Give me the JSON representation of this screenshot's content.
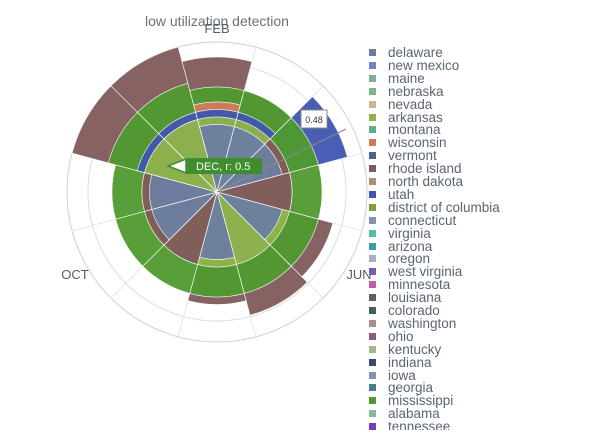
{
  "chart_data": {
    "type": "barpolar",
    "title": "low utilization detection",
    "angular_categories": [
      "FEB",
      "JUN",
      "OCT"
    ],
    "radial_ticks": [
      "0.48"
    ],
    "annotations": [
      "DEC, r: 0.5"
    ],
    "series": [
      {
        "name": "delaware",
        "color": "#6b7ea1",
        "values": [
          0.5,
          0.45,
          0.45,
          0.45,
          0.5,
          0.45,
          0.5,
          0.45,
          0.5,
          0.45,
          0.45,
          0.5
        ]
      },
      {
        "name": "new mexico",
        "color": "#7b82c4",
        "values": []
      },
      {
        "name": "maine",
        "color": "#7fae9a",
        "values": []
      },
      {
        "name": "nebraska",
        "color": "#7fb48a",
        "values": []
      },
      {
        "name": "nevada",
        "color": "#c9b98a",
        "values": []
      },
      {
        "name": "arkansas",
        "color": "#8fb34a",
        "values": [
          0.5,
          0.5,
          0.5,
          0.5,
          0.5,
          0.5,
          0.5,
          0.5,
          0.5,
          0.5,
          0.5,
          0.5
        ]
      },
      {
        "name": "montana",
        "color": "#5fae8a",
        "values": []
      },
      {
        "name": "wisconsin",
        "color": "#d07a5c",
        "values": [
          0,
          0.6,
          0,
          0,
          0,
          0,
          0,
          0,
          0,
          0,
          0,
          0
        ]
      },
      {
        "name": "vermont",
        "color": "#4a6296",
        "values": []
      },
      {
        "name": "rhode island",
        "color": "#7f5a5a",
        "values": [
          1.0,
          0.9,
          0.7,
          0.5,
          0.5,
          0.8,
          0.85,
          0.75,
          0.5,
          0.5,
          0.5,
          1.0
        ]
      },
      {
        "name": "north dakota",
        "color": "#a8917d",
        "values": []
      },
      {
        "name": "utah",
        "color": "#3f55b0",
        "values": [
          0.55,
          0.55,
          0.55,
          0.9,
          0,
          0,
          0,
          0,
          0,
          0,
          0,
          0.55
        ]
      },
      {
        "name": "district of columbia",
        "color": "#7fa03a",
        "values": []
      },
      {
        "name": "connecticut",
        "color": "#8593b6",
        "values": []
      },
      {
        "name": "virginia",
        "color": "#4fc0a8",
        "values": []
      },
      {
        "name": "arizona",
        "color": "#3f9aa8",
        "values": []
      },
      {
        "name": "oregon",
        "color": "#a5b0c6",
        "values": []
      },
      {
        "name": "west virginia",
        "color": "#7560b8",
        "values": []
      },
      {
        "name": "minnesota",
        "color": "#c35ab0",
        "values": []
      },
      {
        "name": "louisiana",
        "color": "#6b5a6b",
        "values": []
      },
      {
        "name": "colorado",
        "color": "#3f6060",
        "values": []
      },
      {
        "name": "washington",
        "color": "#b08a96",
        "values": []
      },
      {
        "name": "ohio",
        "color": "#8a5a8a",
        "values": []
      },
      {
        "name": "kentucky",
        "color": "#a8b690",
        "values": []
      },
      {
        "name": "indiana",
        "color": "#3a4a6a",
        "values": []
      },
      {
        "name": "iowa",
        "color": "#8594a8",
        "values": []
      },
      {
        "name": "georgia",
        "color": "#4a7a9a",
        "values": []
      },
      {
        "name": "mississippi",
        "color": "#4f9a2f",
        "values": [
          0.75,
          0.7,
          0.7,
          0.7,
          0.7,
          0.7,
          0.7,
          0.7,
          0.7,
          0.7,
          0.7,
          0.75
        ]
      },
      {
        "name": "alabama",
        "color": "#8ab89a",
        "values": []
      },
      {
        "name": "tennessee",
        "color": "#7040c0",
        "values": []
      }
    ]
  }
}
